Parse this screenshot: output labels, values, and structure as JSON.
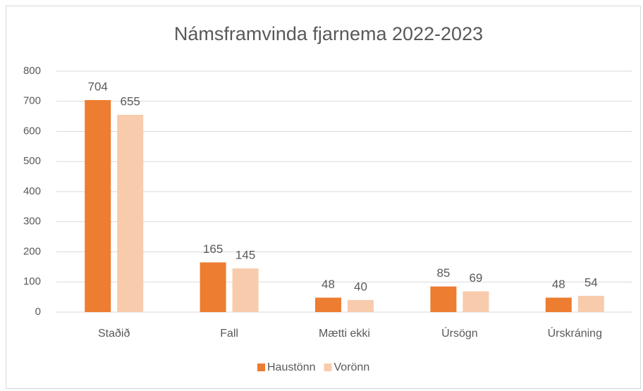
{
  "chart_data": {
    "type": "bar",
    "title": "Námsframvinda fjarnema 2022-2023",
    "categories": [
      "Staðið",
      "Fall",
      "Mætti ekki",
      "Úrsögn",
      "Úrskráning"
    ],
    "series": [
      {
        "name": "Haustönn",
        "color": "#ed7d31",
        "values": [
          704,
          165,
          48,
          85,
          48
        ]
      },
      {
        "name": "Vorönn",
        "color": "#f8cbad",
        "values": [
          655,
          145,
          40,
          69,
          54
        ]
      }
    ],
    "ylim": [
      0,
      800
    ],
    "yticks": [
      0,
      100,
      200,
      300,
      400,
      500,
      600,
      700,
      800
    ],
    "grid": true,
    "legend": "bottom",
    "data_labels": true
  }
}
